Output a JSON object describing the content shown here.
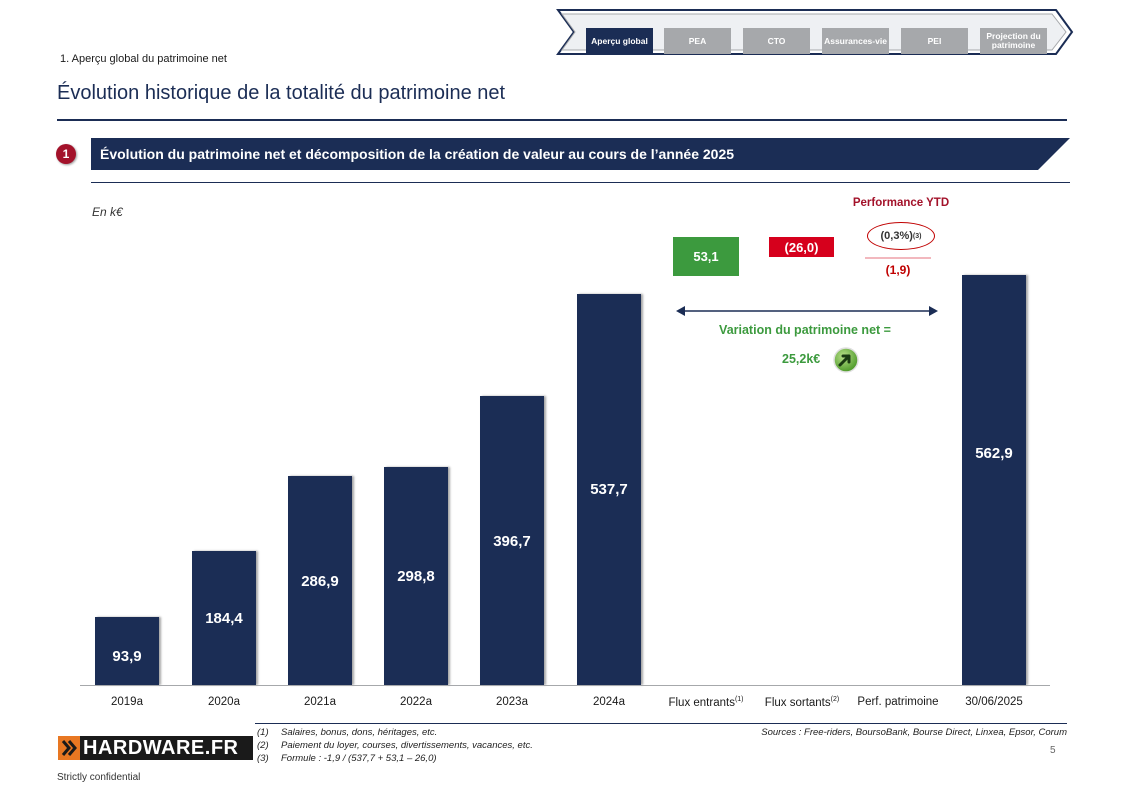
{
  "nav": {
    "tabs": [
      {
        "label": "Aperçu global",
        "active": true
      },
      {
        "label": "PEA",
        "active": false
      },
      {
        "label": "CTO",
        "active": false
      },
      {
        "label": "Assurances-vie",
        "active": false
      },
      {
        "label": "PEI",
        "active": false
      },
      {
        "label": "Projection du patrimoine",
        "active": false
      }
    ]
  },
  "header": {
    "section": "1. Aperçu global du patrimoine net",
    "title": "Évolution historique de la totalité du patrimoine net"
  },
  "banner": {
    "step_number": "1",
    "text": "Évolution du patrimoine net et décomposition de la création de valeur au cours de l’année 2025"
  },
  "chart_data": {
    "type": "bar",
    "unit_label": "En k€",
    "categories": [
      "2019a",
      "2020a",
      "2021a",
      "2022a",
      "2023a",
      "2024a",
      "Flux entrants",
      "Flux sortants",
      "Perf. patrimoine",
      "30/06/2025"
    ],
    "values": [
      93.9,
      184.4,
      286.9,
      298.8,
      396.7,
      537.7,
      53.1,
      -26.0,
      -1.9,
      562.9
    ],
    "value_labels": [
      "93,9",
      "184,4",
      "286,9",
      "298,8",
      "396,7",
      "537,7",
      "53,1",
      "(26,0)",
      "(1,9)",
      "562,9"
    ],
    "ylim": [
      0,
      650
    ],
    "grid": false,
    "waterfall": {
      "flux_in": {
        "label": "53,1",
        "color": "#3c9a3e"
      },
      "flux_out": {
        "label": "(26,0)",
        "color": "#d6001c"
      },
      "perf_title": "Performance YTD",
      "perf_ytd": "(0,3%)",
      "perf_ytd_note": "(3)",
      "perf_value": "(1,9)"
    },
    "footnote_marks": {
      "Flux entrants": "(1)",
      "Flux sortants": "(2)"
    },
    "variation": {
      "label": "Variation du patrimoine net =",
      "value": "25,2k€"
    }
  },
  "footer": {
    "logo": "HARDWARE.FR",
    "notes": [
      {
        "num": "(1)",
        "text": "Salaires, bonus, dons, héritages, etc."
      },
      {
        "num": "(2)",
        "text": "Paiement du loyer, courses, divertissements, vacances, etc."
      },
      {
        "num": "(3)",
        "text": "Formule : -1,9 / (537,7 + 53,1 – 26,0)"
      }
    ],
    "sources": "Sources : Free-riders, BoursoBank, Bourse Direct, Linxea, Epsor, Corum",
    "page_number": "5",
    "confidential": "Strictly confidential"
  },
  "colors": {
    "navy": "#1b2d55",
    "green": "#3c9a3e",
    "red": "#d6001c",
    "dark_red": "#a3122a",
    "grey": "#a6a8ab"
  }
}
